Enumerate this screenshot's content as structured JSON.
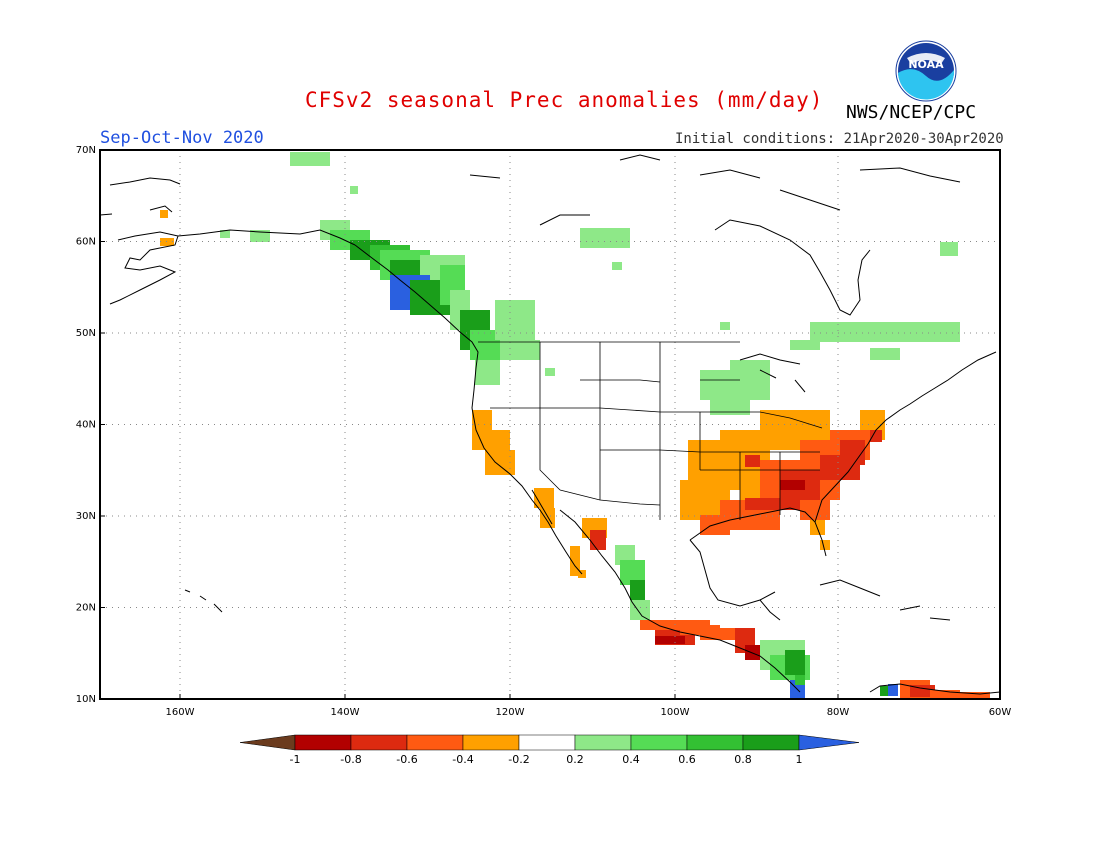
{
  "header": {
    "title": "CFSv2 seasonal Prec anomalies (mm/day)",
    "agency": "NWS/NCEP/CPC",
    "season": "Sep-Oct-Nov 2020",
    "initial_conditions": "Initial conditions: 21Apr2020-30Apr2020",
    "logo_text": "NOAA"
  },
  "map": {
    "lat_labels": [
      "70N",
      "60N",
      "50N",
      "40N",
      "30N",
      "20N",
      "10N"
    ],
    "lon_labels": [
      "160W",
      "140W",
      "120W",
      "100W",
      "80W",
      "60W"
    ]
  },
  "legend": {
    "tick_labels": [
      "-1",
      "-0.8",
      "-0.6",
      "-0.4",
      "-0.2",
      "0.2",
      "0.4",
      "0.6",
      "0.8",
      "1"
    ],
    "colors": [
      "#6b3b1e",
      "#b20000",
      "#dd2a10",
      "#ff5a12",
      "#ffa000",
      "#ffffff",
      "#8ee888",
      "#55dc55",
      "#33c033",
      "#1a9e1a",
      "#2a60e0"
    ]
  },
  "colors": {
    "title": "#e00000",
    "season": "#2050e0",
    "frame": "#000000"
  }
}
